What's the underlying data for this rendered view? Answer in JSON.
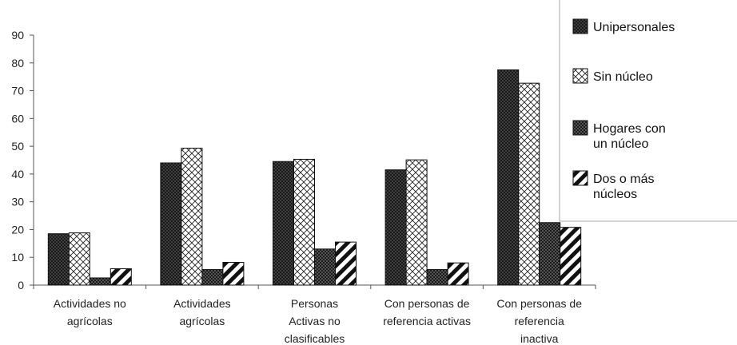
{
  "chart_data": {
    "type": "bar",
    "title": "",
    "xlabel": "",
    "ylabel": "",
    "ylim": [
      0,
      90
    ],
    "yticks": [
      0,
      10,
      20,
      30,
      40,
      50,
      60,
      70,
      80,
      90
    ],
    "grid": false,
    "legend_position": "top-right",
    "categories": [
      [
        "Actividades no",
        "agrícolas"
      ],
      [
        "Actividades",
        "agrícolas"
      ],
      [
        "Personas",
        "Activas no",
        "clasificables"
      ],
      [
        "Con personas de",
        "referencia activas"
      ],
      [
        "Con personas de",
        "referencia",
        "inactiva"
      ]
    ],
    "series": [
      {
        "name": [
          "Unipersonales"
        ],
        "pattern": "dots-dark",
        "values": [
          18.5,
          44,
          44.5,
          41.5,
          77.5
        ]
      },
      {
        "name": [
          "Sin núcleo"
        ],
        "pattern": "crosshatch-light",
        "values": [
          18.8,
          49.3,
          45.3,
          45.1,
          72.7
        ]
      },
      {
        "name": [
          "Hogares con",
          "un núcleo"
        ],
        "pattern": "checker-dark",
        "values": [
          2.6,
          5.6,
          13,
          5.6,
          22.5
        ]
      },
      {
        "name": [
          "Dos o más",
          "núcleos"
        ],
        "pattern": "diagonal-stripes",
        "values": [
          5.9,
          8.2,
          15.5,
          8,
          20.8
        ]
      }
    ],
    "colors": {
      "ink": "#111111",
      "axis": "#555555",
      "legend_border": "#aaaaaa"
    }
  }
}
